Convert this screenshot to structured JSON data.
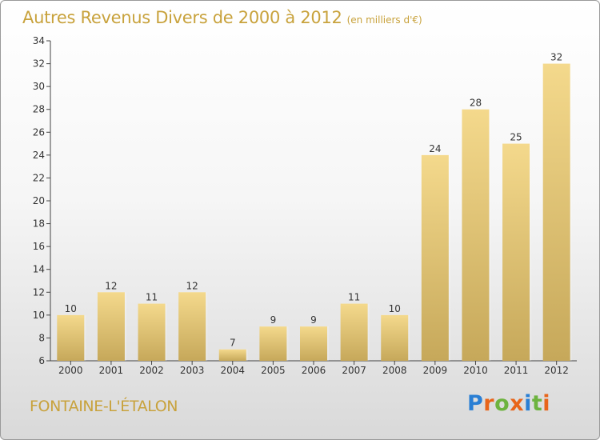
{
  "chart_data": {
    "type": "bar",
    "title": "Autres Revenus Divers de 2000 à 2012",
    "subtitle": "(en milliers d'€)",
    "categories": [
      "2000",
      "2001",
      "2002",
      "2003",
      "2004",
      "2005",
      "2006",
      "2007",
      "2008",
      "2009",
      "2010",
      "2011",
      "2012"
    ],
    "values": [
      10,
      12,
      11,
      12,
      7,
      9,
      9,
      11,
      10,
      24,
      28,
      25,
      32
    ],
    "ylim": [
      6,
      34
    ],
    "yticks": [
      6,
      8,
      10,
      12,
      14,
      16,
      18,
      20,
      22,
      24,
      26,
      28,
      30,
      32,
      34
    ],
    "grid": false,
    "bar_color": "#d9bb6a",
    "text_color": "#c8a23c"
  },
  "footer": {
    "commune": "FONTAINE-L'ÉTALON",
    "logo": {
      "letters": [
        "P",
        "r",
        "o",
        "x",
        "i",
        "t",
        "i"
      ],
      "colors": [
        "#2a7fd4",
        "#e8651a",
        "#6db33f",
        "#e8651a",
        "#2a7fd4",
        "#6db33f",
        "#e8651a"
      ]
    }
  }
}
